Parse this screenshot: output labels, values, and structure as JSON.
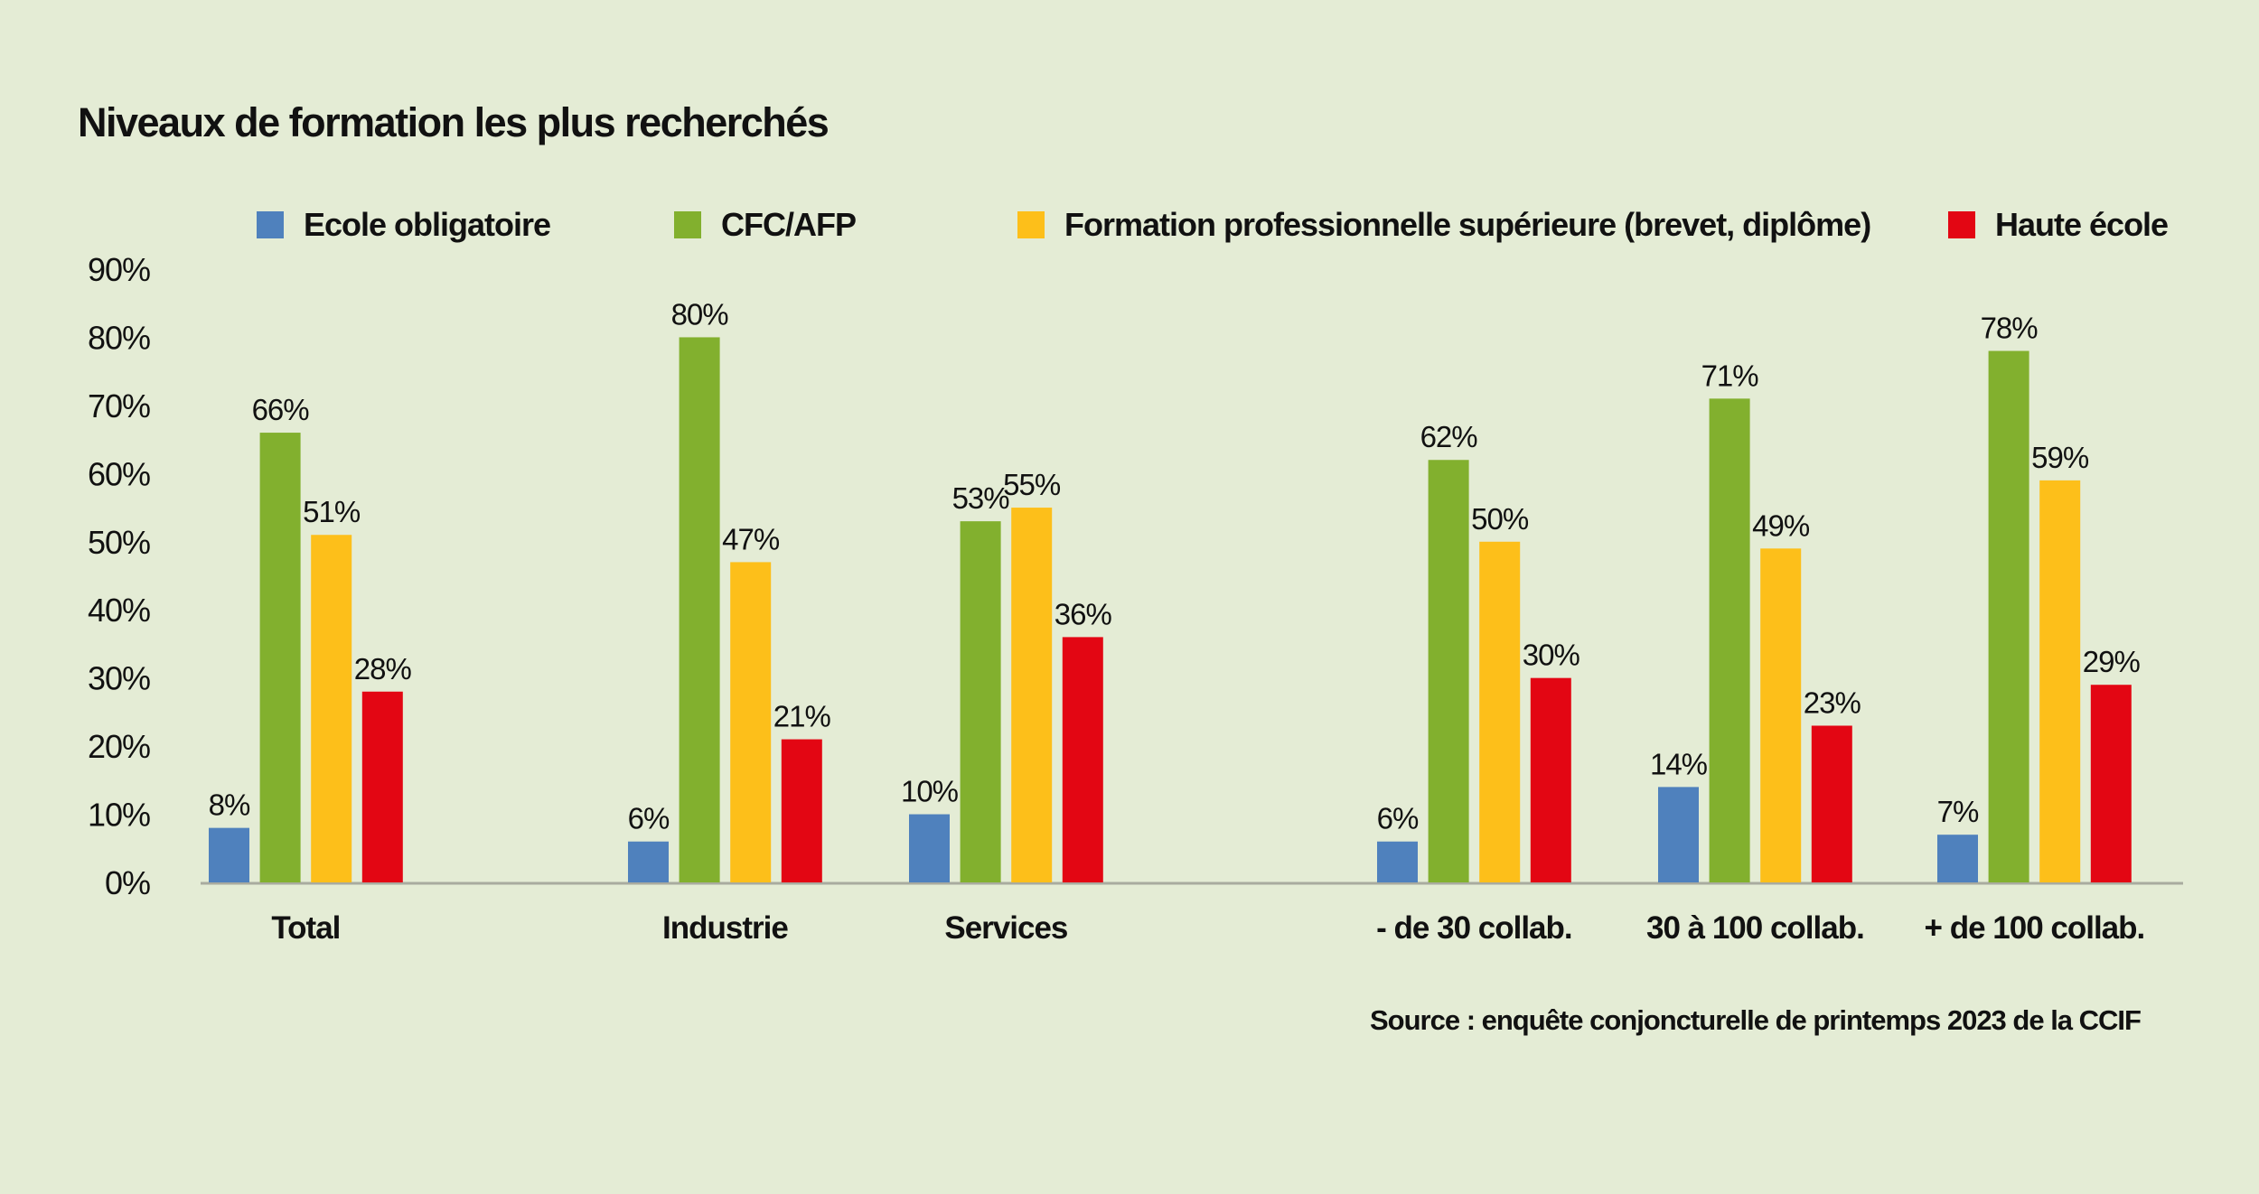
{
  "chart_data": {
    "type": "bar",
    "title": "Niveaux de formation les plus recherchés",
    "categories": [
      "Total",
      "Industrie",
      "Services",
      "- de 30 collab.",
      "30 à 100 collab.",
      "+ de 100 collab."
    ],
    "series": [
      {
        "name": "Ecole obligatoire",
        "color": "#4f81bd",
        "values": [
          8,
          6,
          10,
          6,
          14,
          7
        ]
      },
      {
        "name": "CFC/AFP",
        "color": "#82b02e",
        "values": [
          66,
          80,
          53,
          62,
          71,
          78
        ]
      },
      {
        "name": "Formation professionnelle supérieure (brevet, diplôme)",
        "color": "#fdbf1a",
        "values": [
          51,
          47,
          55,
          50,
          49,
          59
        ]
      },
      {
        "name": "Haute école",
        "color": "#e30613",
        "values": [
          28,
          21,
          36,
          30,
          23,
          29
        ]
      }
    ],
    "value_suffix": "%",
    "yticks": [
      "0%",
      "10%",
      "20%",
      "30%",
      "40%",
      "50%",
      "60%",
      "70%",
      "80%",
      "90%"
    ],
    "ylim": [
      0,
      90
    ],
    "xlabel": "",
    "ylabel": "",
    "grid": false,
    "legend_position": "top",
    "source": "Source : enquête conjoncturelle de printemps 2023 de la CCIF"
  }
}
